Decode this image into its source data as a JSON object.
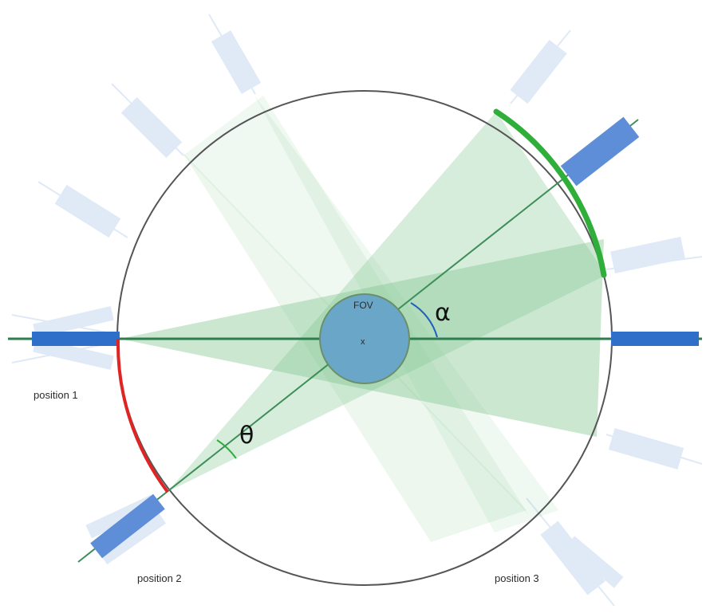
{
  "labels": {
    "fov": "FOV",
    "center_mark": "x",
    "alpha": "α",
    "theta": "θ",
    "position_1": "position 1",
    "position_2": "position 2",
    "position_3": "position 3"
  },
  "colors": {
    "circle_stroke": "#555555",
    "axis_line": "#2e7d4f",
    "fan_fill": "#7cc38a",
    "fov_fill": "#6aa6c8",
    "detector_dark": "#2f6fc9",
    "detector_light": "#c6d7ef",
    "arc_red": "#e02424",
    "arc_green": "#2fae3a",
    "alpha_arc": "#1f5fbf",
    "theta_arc": "#2fae3a"
  }
}
